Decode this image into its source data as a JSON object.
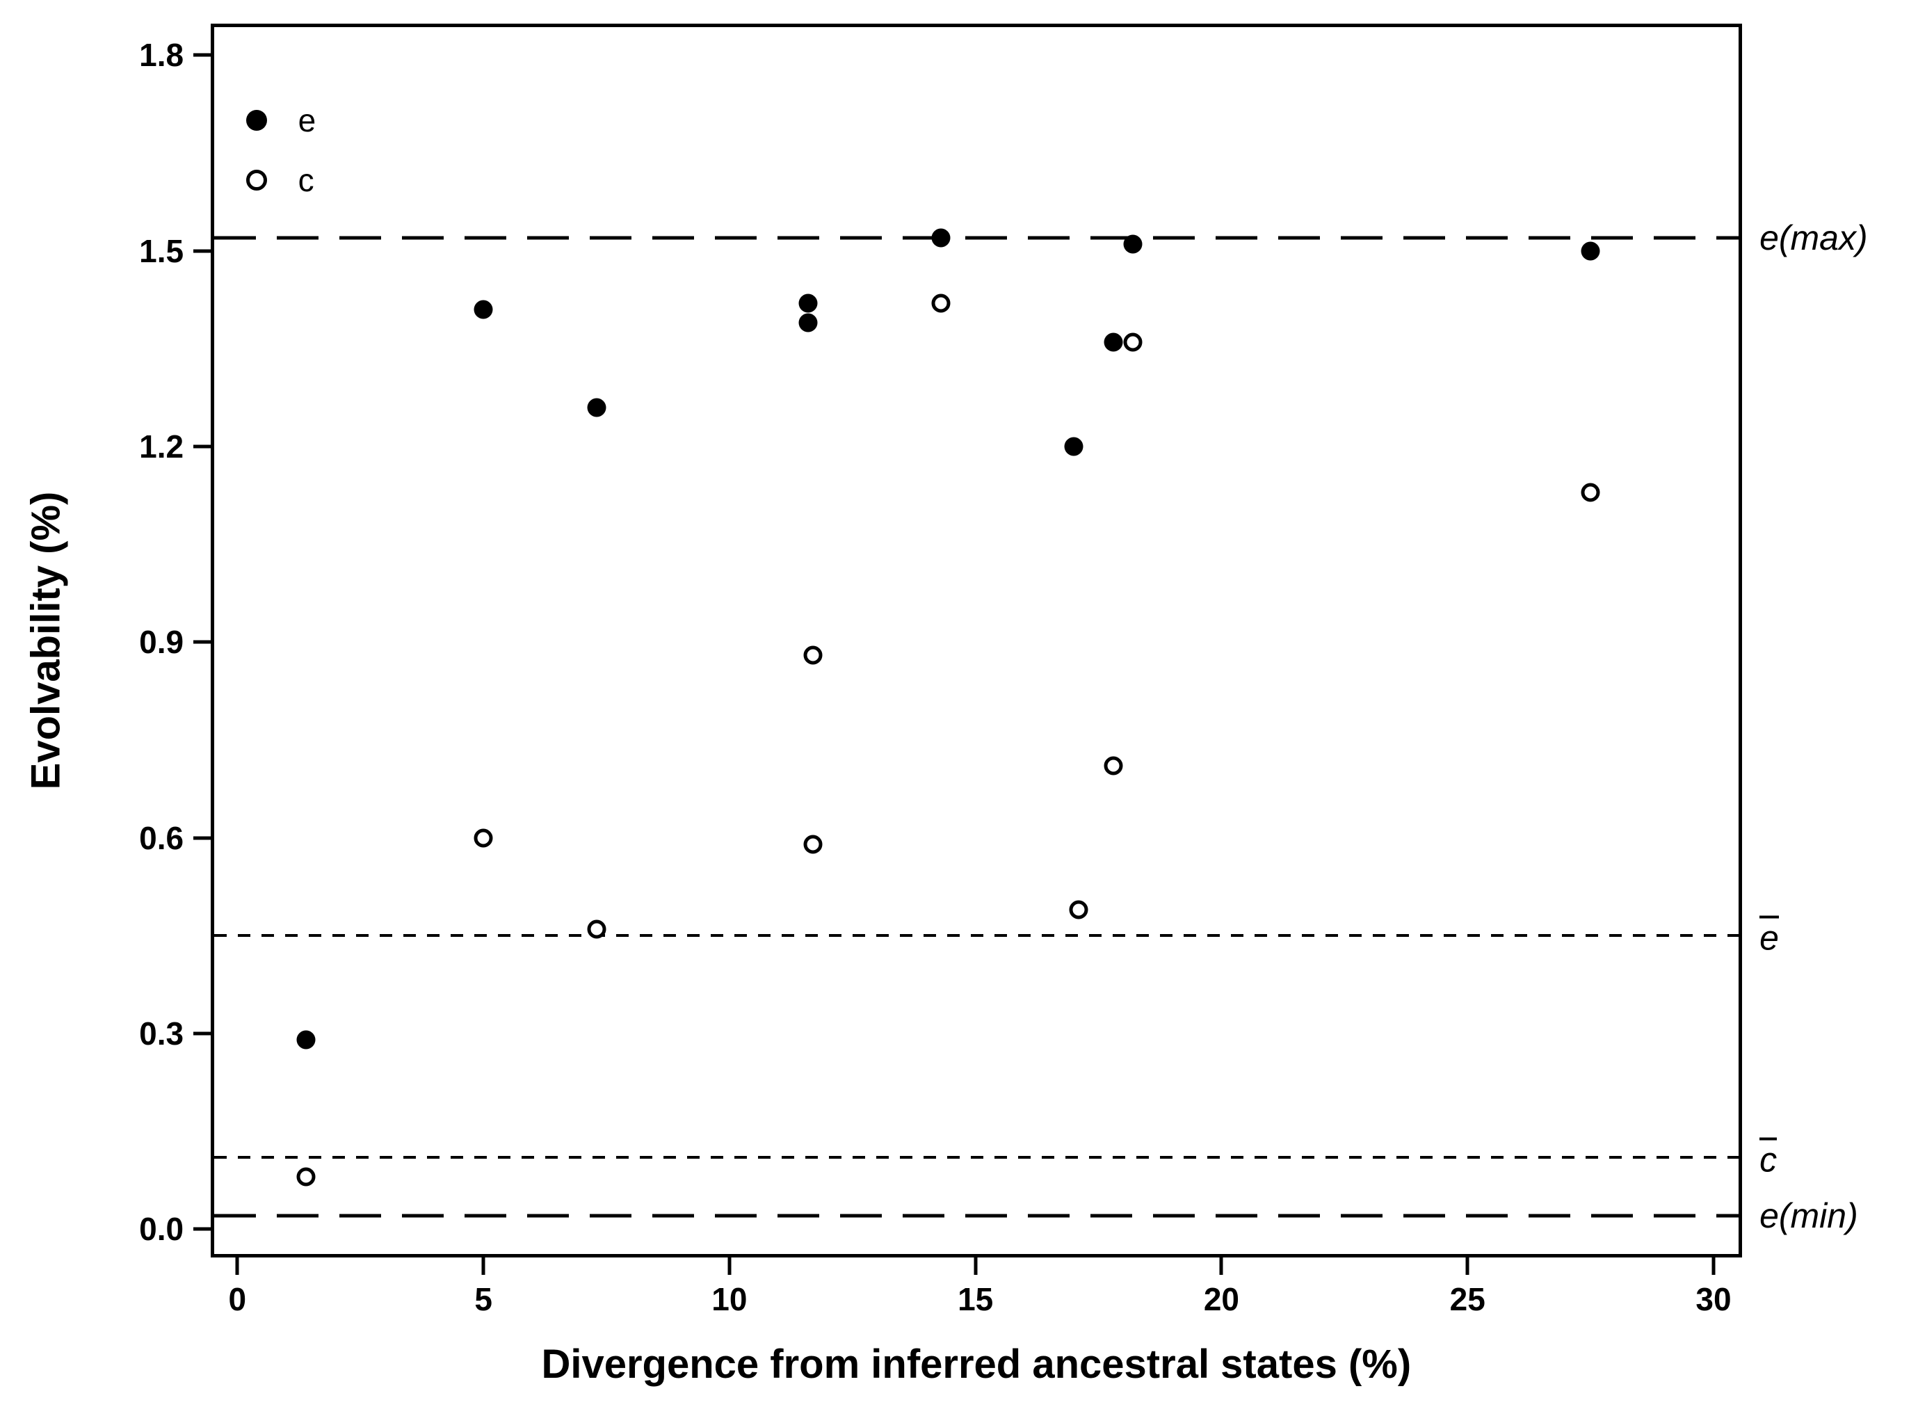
{
  "figure": {
    "legend": {
      "items": [
        {
          "marker": "filled-circle",
          "label": "e"
        },
        {
          "marker": "open-circle",
          "label": "c"
        }
      ]
    }
  },
  "chart_data": {
    "type": "scatter",
    "title": "",
    "xlabel": "Divergence from inferred ancestral states (%)",
    "ylabel": "Evolvability (%)",
    "xlim": [
      -0.47,
      30.51
    ],
    "ylim": [
      -0.038,
      1.843
    ],
    "x_ticks": [
      0,
      5,
      10,
      15,
      20,
      25,
      30
    ],
    "x_tick_labels": [
      "0",
      "5",
      "10",
      "15",
      "20",
      "25",
      "30"
    ],
    "y_ticks": [
      1.8,
      1.5,
      1.2,
      0.9,
      0.6,
      0.3,
      0.0
    ],
    "y_tick_labels": [
      "1.8",
      "1.5",
      "1.2",
      "0.9",
      "0.6",
      "0.3",
      "0.0"
    ],
    "grid": false,
    "legend_position": "top-left-inside",
    "series": [
      {
        "name": "e",
        "marker": "filled-circle",
        "points": [
          [
            1.4,
            0.29
          ],
          [
            5.0,
            1.41
          ],
          [
            7.3,
            1.26
          ],
          [
            11.6,
            1.42
          ],
          [
            11.6,
            1.39
          ],
          [
            14.3,
            1.52
          ],
          [
            17.0,
            1.2
          ],
          [
            17.8,
            1.36
          ],
          [
            18.2,
            1.51
          ],
          [
            27.5,
            1.5
          ]
        ]
      },
      {
        "name": "c",
        "marker": "open-circle",
        "points": [
          [
            1.4,
            0.08
          ],
          [
            5.0,
            0.6
          ],
          [
            7.3,
            0.46
          ],
          [
            11.7,
            0.88
          ],
          [
            11.7,
            0.59
          ],
          [
            14.3,
            1.42
          ],
          [
            17.1,
            0.49
          ],
          [
            17.8,
            0.71
          ],
          [
            18.2,
            1.36
          ],
          [
            27.5,
            1.13
          ]
        ]
      }
    ],
    "reference_lines": [
      {
        "label": "e(max)",
        "value": 1.52,
        "dash": "long",
        "italic": true,
        "overline": false
      },
      {
        "label": "e",
        "value": 0.45,
        "dash": "dot",
        "italic": true,
        "overline": true
      },
      {
        "label": "c",
        "value": 0.11,
        "dash": "dot",
        "italic": true,
        "overline": true
      },
      {
        "label": "e(min)",
        "value": 0.02,
        "dash": "long",
        "italic": true,
        "overline": false
      }
    ],
    "colors": {
      "foreground": "#000000",
      "background": "#ffffff"
    }
  }
}
